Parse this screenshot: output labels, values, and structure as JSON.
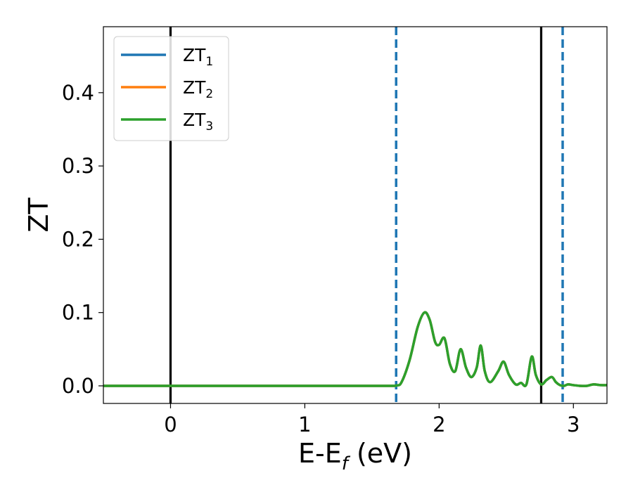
{
  "chart_data": {
    "type": "line",
    "xlabel": "E-E",
    "xlabel_subscript": "f",
    "xlabel_unit": " (eV)",
    "ylabel": "ZT",
    "xlim": [
      -0.5,
      3.25
    ],
    "ylim": [
      -0.024,
      0.49
    ],
    "xticks": [
      0,
      1,
      2,
      3
    ],
    "xtick_labels": [
      "0",
      "1",
      "2",
      "3"
    ],
    "yticks": [
      0.0,
      0.1,
      0.2,
      0.3,
      0.4
    ],
    "ytick_labels": [
      "0.0",
      "0.1",
      "0.2",
      "0.3",
      "0.4"
    ],
    "grid": false,
    "legend_position": "top-left",
    "series": [
      {
        "name": "ZT",
        "subscript": "1",
        "color": "#1f77b4",
        "x": [
          -0.5,
          1.0,
          1.6,
          1.68,
          1.72,
          1.78,
          1.84,
          1.89,
          1.93,
          1.97,
          2.0,
          2.04,
          2.08,
          2.12,
          2.16,
          2.2,
          2.24,
          2.28,
          2.31,
          2.34,
          2.38,
          2.44,
          2.48,
          2.52,
          2.57,
          2.61,
          2.65,
          2.69,
          2.72,
          2.76,
          2.8,
          2.84,
          2.87,
          2.9,
          2.93,
          2.96,
          3.0,
          3.05,
          3.1,
          3.15,
          3.2,
          3.25
        ],
        "y": [
          0.0,
          0.0,
          0.0,
          0.0005,
          0.005,
          0.035,
          0.08,
          0.1,
          0.09,
          0.06,
          0.056,
          0.065,
          0.03,
          0.02,
          0.05,
          0.025,
          0.012,
          0.025,
          0.055,
          0.02,
          0.005,
          0.02,
          0.033,
          0.015,
          0.002,
          0.004,
          0.002,
          0.04,
          0.015,
          0.002,
          0.008,
          0.012,
          0.005,
          0.001,
          0.0,
          0.002,
          0.001,
          0.0,
          0.0,
          0.002,
          0.001,
          0.001
        ]
      },
      {
        "name": "ZT",
        "subscript": "2",
        "color": "#ff7f0e",
        "x": [
          -0.5,
          1.0,
          1.6,
          1.68,
          1.72,
          1.78,
          1.84,
          1.89,
          1.93,
          1.97,
          2.0,
          2.04,
          2.08,
          2.12,
          2.16,
          2.2,
          2.24,
          2.28,
          2.31,
          2.34,
          2.38,
          2.44,
          2.48,
          2.52,
          2.57,
          2.61,
          2.65,
          2.69,
          2.72,
          2.76,
          2.8,
          2.84,
          2.87,
          2.9,
          2.93,
          2.96,
          3.0,
          3.05,
          3.1,
          3.15,
          3.2,
          3.25
        ],
        "y": [
          0.0,
          0.0,
          0.0,
          0.0005,
          0.005,
          0.035,
          0.08,
          0.1,
          0.09,
          0.06,
          0.056,
          0.065,
          0.03,
          0.02,
          0.05,
          0.025,
          0.012,
          0.025,
          0.055,
          0.02,
          0.005,
          0.02,
          0.033,
          0.015,
          0.002,
          0.004,
          0.002,
          0.04,
          0.015,
          0.002,
          0.008,
          0.012,
          0.005,
          0.001,
          0.0,
          0.002,
          0.001,
          0.0,
          0.0,
          0.002,
          0.001,
          0.001
        ]
      },
      {
        "name": "ZT",
        "subscript": "3",
        "color": "#2ca02c",
        "x": [
          -0.5,
          1.0,
          1.6,
          1.68,
          1.72,
          1.78,
          1.84,
          1.89,
          1.93,
          1.97,
          2.0,
          2.04,
          2.08,
          2.12,
          2.16,
          2.2,
          2.24,
          2.28,
          2.31,
          2.34,
          2.38,
          2.44,
          2.48,
          2.52,
          2.57,
          2.61,
          2.65,
          2.69,
          2.72,
          2.76,
          2.8,
          2.84,
          2.87,
          2.9,
          2.93,
          2.96,
          3.0,
          3.05,
          3.1,
          3.15,
          3.2,
          3.25
        ],
        "y": [
          0.0,
          0.0,
          0.0,
          0.0005,
          0.005,
          0.035,
          0.08,
          0.1,
          0.09,
          0.06,
          0.056,
          0.065,
          0.03,
          0.02,
          0.05,
          0.025,
          0.012,
          0.025,
          0.055,
          0.02,
          0.005,
          0.02,
          0.033,
          0.015,
          0.002,
          0.004,
          0.002,
          0.04,
          0.015,
          0.002,
          0.008,
          0.012,
          0.005,
          0.001,
          0.0,
          0.002,
          0.001,
          0.0,
          0.0,
          0.002,
          0.001,
          0.001
        ]
      }
    ],
    "vlines": [
      {
        "x": 0.0,
        "color": "#000000",
        "style": "solid"
      },
      {
        "x": 2.76,
        "color": "#000000",
        "style": "solid"
      },
      {
        "x": 1.68,
        "color": "#1f77b4",
        "style": "dashed"
      },
      {
        "x": 2.92,
        "color": "#1f77b4",
        "style": "dashed"
      }
    ]
  }
}
